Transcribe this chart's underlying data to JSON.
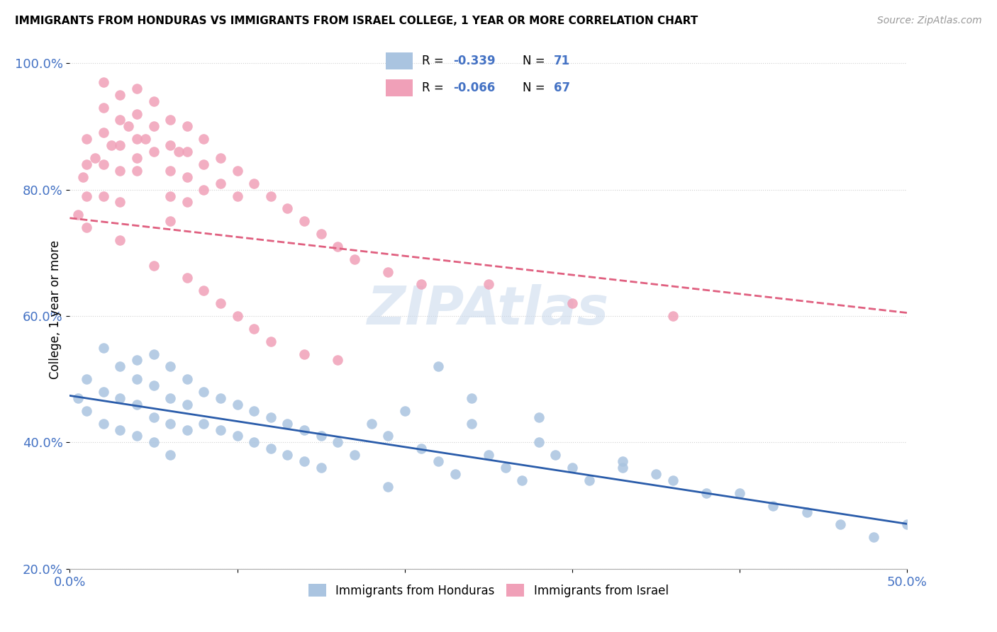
{
  "title": "IMMIGRANTS FROM HONDURAS VS IMMIGRANTS FROM ISRAEL COLLEGE, 1 YEAR OR MORE CORRELATION CHART",
  "source": "Source: ZipAtlas.com",
  "ylabel": "College, 1 year or more",
  "xlim": [
    0.0,
    0.5
  ],
  "ylim": [
    0.2,
    1.02
  ],
  "yticks": [
    0.2,
    0.4,
    0.6,
    0.8,
    1.0
  ],
  "ytick_labels": [
    "20.0%",
    "40.0%",
    "60.0%",
    "80.0%",
    "100.0%"
  ],
  "color_honduras": "#aac4e0",
  "color_israel": "#f0a0b8",
  "line_color_honduras": "#2a5caa",
  "line_color_israel": "#e06080",
  "watermark_text": "ZIPAtlas",
  "legend_r1": "-0.339",
  "legend_n1": "71",
  "legend_r2": "-0.066",
  "legend_n2": "67",
  "honduras_x": [
    0.005,
    0.01,
    0.01,
    0.02,
    0.02,
    0.02,
    0.03,
    0.03,
    0.03,
    0.04,
    0.04,
    0.04,
    0.04,
    0.05,
    0.05,
    0.05,
    0.05,
    0.06,
    0.06,
    0.06,
    0.06,
    0.07,
    0.07,
    0.07,
    0.08,
    0.08,
    0.09,
    0.09,
    0.1,
    0.1,
    0.11,
    0.11,
    0.12,
    0.12,
    0.13,
    0.13,
    0.14,
    0.14,
    0.15,
    0.15,
    0.16,
    0.17,
    0.18,
    0.19,
    0.2,
    0.21,
    0.22,
    0.23,
    0.24,
    0.25,
    0.26,
    0.27,
    0.28,
    0.29,
    0.3,
    0.31,
    0.33,
    0.35,
    0.36,
    0.38,
    0.4,
    0.42,
    0.44,
    0.46,
    0.48,
    0.5,
    0.24,
    0.19,
    0.22,
    0.28,
    0.33
  ],
  "honduras_y": [
    0.47,
    0.5,
    0.45,
    0.55,
    0.48,
    0.43,
    0.52,
    0.47,
    0.42,
    0.53,
    0.5,
    0.46,
    0.41,
    0.54,
    0.49,
    0.44,
    0.4,
    0.52,
    0.47,
    0.43,
    0.38,
    0.5,
    0.46,
    0.42,
    0.48,
    0.43,
    0.47,
    0.42,
    0.46,
    0.41,
    0.45,
    0.4,
    0.44,
    0.39,
    0.43,
    0.38,
    0.42,
    0.37,
    0.41,
    0.36,
    0.4,
    0.38,
    0.43,
    0.41,
    0.45,
    0.39,
    0.37,
    0.35,
    0.43,
    0.38,
    0.36,
    0.34,
    0.4,
    0.38,
    0.36,
    0.34,
    0.36,
    0.35,
    0.34,
    0.32,
    0.32,
    0.3,
    0.29,
    0.27,
    0.25,
    0.27,
    0.47,
    0.33,
    0.52,
    0.44,
    0.37
  ],
  "israel_x": [
    0.005,
    0.008,
    0.01,
    0.01,
    0.01,
    0.01,
    0.015,
    0.02,
    0.02,
    0.02,
    0.02,
    0.025,
    0.03,
    0.03,
    0.03,
    0.03,
    0.03,
    0.035,
    0.04,
    0.04,
    0.04,
    0.04,
    0.045,
    0.05,
    0.05,
    0.05,
    0.06,
    0.06,
    0.06,
    0.06,
    0.065,
    0.07,
    0.07,
    0.07,
    0.07,
    0.08,
    0.08,
    0.08,
    0.09,
    0.09,
    0.1,
    0.1,
    0.11,
    0.12,
    0.13,
    0.14,
    0.15,
    0.16,
    0.17,
    0.19,
    0.21,
    0.06,
    0.04,
    0.02,
    0.03,
    0.05,
    0.07,
    0.08,
    0.09,
    0.1,
    0.11,
    0.12,
    0.14,
    0.25,
    0.3,
    0.36,
    0.16
  ],
  "israel_y": [
    0.76,
    0.82,
    0.88,
    0.84,
    0.79,
    0.74,
    0.85,
    0.93,
    0.89,
    0.84,
    0.79,
    0.87,
    0.95,
    0.91,
    0.87,
    0.83,
    0.78,
    0.9,
    0.96,
    0.92,
    0.88,
    0.83,
    0.88,
    0.94,
    0.9,
    0.86,
    0.91,
    0.87,
    0.83,
    0.79,
    0.86,
    0.9,
    0.86,
    0.82,
    0.78,
    0.88,
    0.84,
    0.8,
    0.85,
    0.81,
    0.83,
    0.79,
    0.81,
    0.79,
    0.77,
    0.75,
    0.73,
    0.71,
    0.69,
    0.67,
    0.65,
    0.75,
    0.85,
    0.97,
    0.72,
    0.68,
    0.66,
    0.64,
    0.62,
    0.6,
    0.58,
    0.56,
    0.54,
    0.65,
    0.62,
    0.6,
    0.53
  ]
}
